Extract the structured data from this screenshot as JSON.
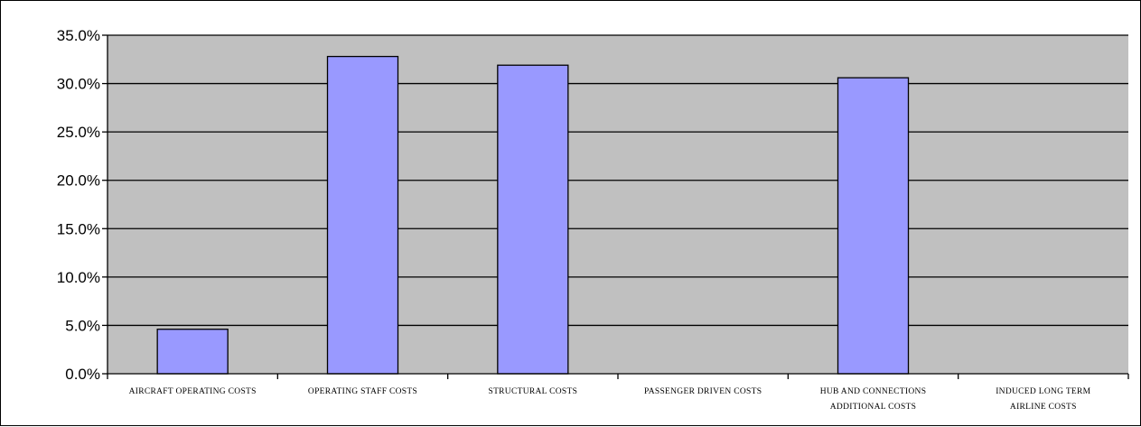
{
  "chart_data": {
    "type": "bar",
    "categories": [
      [
        "AIRCRAFT OPERATING COSTS"
      ],
      [
        "OPERATING STAFF COSTS"
      ],
      [
        "STRUCTURAL COSTS"
      ],
      [
        "PASSENGER DRIVEN COSTS"
      ],
      [
        "HUB AND CONNECTIONS",
        "ADDITIONAL COSTS"
      ],
      [
        "INDUCED LONG TERM",
        "AIRLINE COSTS"
      ]
    ],
    "values": [
      4.6,
      32.8,
      31.9,
      0.0,
      30.6,
      0.0
    ],
    "yticks": [
      "0.0%",
      "5.0%",
      "10.0%",
      "15.0%",
      "20.0%",
      "25.0%",
      "30.0%",
      "35.0%"
    ],
    "ylim": [
      0,
      35
    ],
    "grid": true,
    "colors": {
      "plot_background": "#c0c0c0",
      "bar_fill": "#9999ff",
      "bar_stroke": "#000000",
      "gridline": "#000000"
    }
  }
}
